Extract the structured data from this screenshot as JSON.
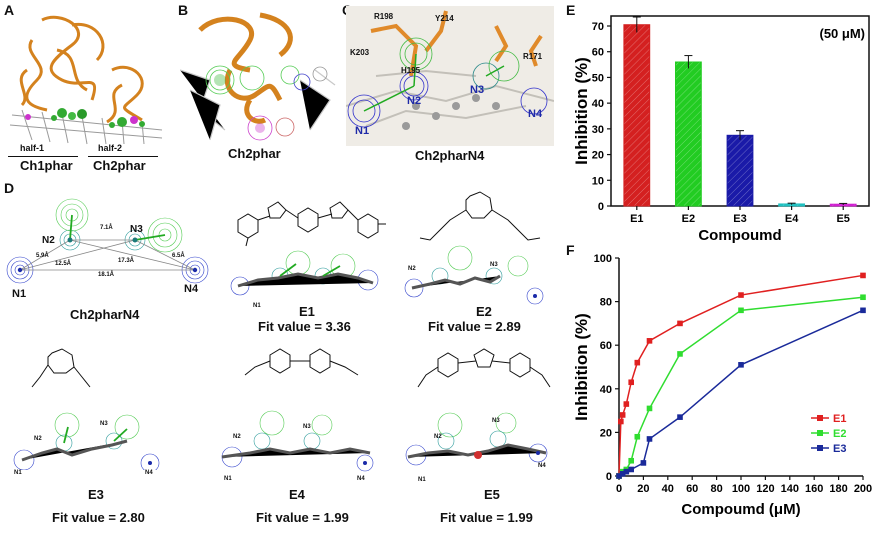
{
  "panels": {
    "A": {
      "label": "A",
      "half1": "half-1",
      "half2": "half-2",
      "ch1": "Ch1phar",
      "ch2": "Ch2phar"
    },
    "B": {
      "label": "B",
      "caption": "Ch2phar"
    },
    "C": {
      "label": "C",
      "caption": "Ch2pharN4",
      "residues": [
        "R198",
        "Y214",
        "K203",
        "H195",
        "R171"
      ],
      "points": [
        "N1",
        "N2",
        "N3",
        "N4"
      ]
    },
    "D": {
      "label": "D",
      "pharm_caption": "Ch2pharN4",
      "pharm_points": [
        "N1",
        "N2",
        "N3",
        "N4"
      ],
      "distances": [
        "7.1Å",
        "5.9Å",
        "12.5Å",
        "17.3Å",
        "6.5Å",
        "18.1Å"
      ],
      "compounds": [
        {
          "name": "E1",
          "fit": "Fit value = 3.36"
        },
        {
          "name": "E2",
          "fit": "Fit value = 2.89"
        },
        {
          "name": "E3",
          "fit": "Fit value = 2.80"
        },
        {
          "name": "E4",
          "fit": "Fit value = 1.99"
        },
        {
          "name": "E5",
          "fit": "Fit value = 1.99"
        }
      ]
    },
    "E": {
      "label": "E"
    },
    "F": {
      "label": "F"
    }
  },
  "chart_data": [
    {
      "type": "bar",
      "panel": "E",
      "annotation": "(50 μM)",
      "categories": [
        "E1",
        "E2",
        "E3",
        "E4",
        "E5"
      ],
      "values": [
        70.5,
        56,
        27.5,
        0.8,
        0.7
      ],
      "errors": [
        3,
        2.5,
        1.8,
        0.3,
        0.3
      ],
      "colors": [
        "#d42020",
        "#22cc22",
        "#1a1aa8",
        "#20c0c0",
        "#d020d0"
      ],
      "xlabel": "Compoumd",
      "ylabel": "Inhibition (%)",
      "ylim": [
        0,
        70
      ],
      "yticks": [
        0,
        10,
        20,
        30,
        40,
        50,
        60,
        70
      ]
    },
    {
      "type": "line",
      "panel": "F",
      "xlabel": "Compoumd (μM)",
      "ylabel": "Inhibition (%)",
      "xlim": [
        0,
        200
      ],
      "ylim": [
        0,
        100
      ],
      "xticks": [
        0,
        20,
        40,
        60,
        80,
        100,
        120,
        140,
        160,
        180,
        200
      ],
      "yticks": [
        0,
        20,
        40,
        60,
        80,
        100
      ],
      "legend": "bottom-right",
      "series": [
        {
          "name": "E1",
          "color": "#e02020",
          "x": [
            0,
            1.5,
            3,
            6,
            10,
            15,
            25,
            50,
            100,
            200
          ],
          "y": [
            0,
            25,
            28,
            33,
            43,
            52,
            62,
            70,
            83,
            92
          ]
        },
        {
          "name": "E2",
          "color": "#30dd30",
          "x": [
            0,
            3,
            6,
            10,
            15,
            25,
            50,
            100,
            200
          ],
          "y": [
            0,
            2,
            3,
            7,
            18,
            31,
            56,
            76,
            82
          ]
        },
        {
          "name": "E3",
          "color": "#1a2a9a",
          "x": [
            0,
            3,
            6,
            10,
            20,
            25,
            50,
            100,
            200
          ],
          "y": [
            0,
            1,
            2,
            3,
            6,
            17,
            27,
            51,
            76
          ]
        }
      ]
    }
  ]
}
